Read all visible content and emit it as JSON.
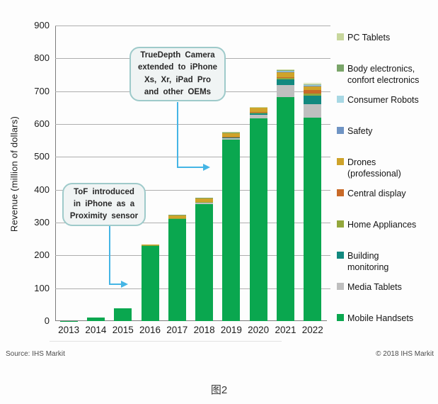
{
  "page": {
    "caption": "图2"
  },
  "footer": {
    "left": "Source: IHS Markit",
    "right": "© 2018 IHS Markit"
  },
  "chart_data": {
    "type": "bar",
    "stacked": true,
    "title": "",
    "xlabel": "",
    "ylabel": "Revenue (million of dollars)",
    "ylim": [
      0,
      900
    ],
    "ytick_step": 100,
    "grid": true,
    "legend_position": "right",
    "categories": [
      "2013",
      "2014",
      "2015",
      "2016",
      "2017",
      "2018",
      "2019",
      "2020",
      "2021",
      "2022"
    ],
    "series": [
      {
        "name": "Mobile Handsets",
        "color": "#0aa74f",
        "values": [
          1,
          10,
          39,
          231,
          311,
          357,
          553,
          617,
          683,
          620
        ]
      },
      {
        "name": "Media Tablets",
        "color": "#bfbfbf",
        "values": [
          0,
          0,
          0,
          0,
          0,
          5,
          4,
          11,
          36,
          40
        ]
      },
      {
        "name": "Building monitoring",
        "color": "#12897f",
        "values": [
          0,
          0,
          0,
          0,
          0,
          0,
          3,
          4,
          18,
          26
        ]
      },
      {
        "name": "Home Appliances",
        "color": "#93a73c",
        "values": [
          0,
          0,
          0,
          1,
          1,
          1,
          1,
          3,
          3,
          6
        ]
      },
      {
        "name": "Central display",
        "color": "#c96a28",
        "values": [
          0,
          0,
          0,
          0,
          0,
          0,
          1,
          2,
          3,
          12
        ]
      },
      {
        "name": "Drones (professional)",
        "color": "#cea32a",
        "values": [
          0,
          0,
          0,
          1,
          10,
          12,
          12,
          13,
          14,
          10
        ]
      },
      {
        "name": "Safety",
        "color": "#6f94c4",
        "values": [
          0,
          0,
          0,
          0,
          0,
          0,
          0,
          0,
          2,
          2
        ]
      },
      {
        "name": "Consumer Robots",
        "color": "#a8d8e4",
        "values": [
          0,
          0,
          0,
          0,
          0,
          0,
          0,
          0,
          2,
          3
        ]
      },
      {
        "name": "Body electronics, confort electronics",
        "color": "#7aa569",
        "values": [
          0,
          0,
          0,
          0,
          1,
          1,
          1,
          1,
          3,
          3
        ]
      },
      {
        "name": "PC Tablets",
        "color": "#c8d79d",
        "values": [
          0,
          0,
          0,
          0,
          0,
          0,
          2,
          1,
          3,
          4
        ]
      }
    ],
    "legend": [
      {
        "label": "PC Tablets",
        "color": "#c8d79d"
      },
      {
        "label": "Body electronics,\nconfort electronics",
        "color": "#7aa569"
      },
      {
        "label": "Consumer Robots",
        "color": "#a8d8e4"
      },
      {
        "label": "Safety",
        "color": "#6f94c4"
      },
      {
        "label": "Drones\n(professional)",
        "color": "#cea32a"
      },
      {
        "label": "Central display",
        "color": "#c96a28"
      },
      {
        "label": "Home Appliances",
        "color": "#93a73c"
      },
      {
        "label": "Building\nmonitoring",
        "color": "#12897f"
      },
      {
        "label": "Media Tablets",
        "color": "#bfbfbf"
      },
      {
        "label": "Mobile Handsets",
        "color": "#0aa74f"
      }
    ],
    "annotations": [
      {
        "id": "truedepth",
        "text": "TrueDepth Camera\nextended to iPhone\nXs, Xr, iPad Pro\nand other OEMs",
        "arrow_color": "#45b5e5"
      },
      {
        "id": "tof",
        "text": "ToF introduced\nin iPhone as a\nProximity sensor",
        "arrow_color": "#45b5e5"
      }
    ]
  }
}
